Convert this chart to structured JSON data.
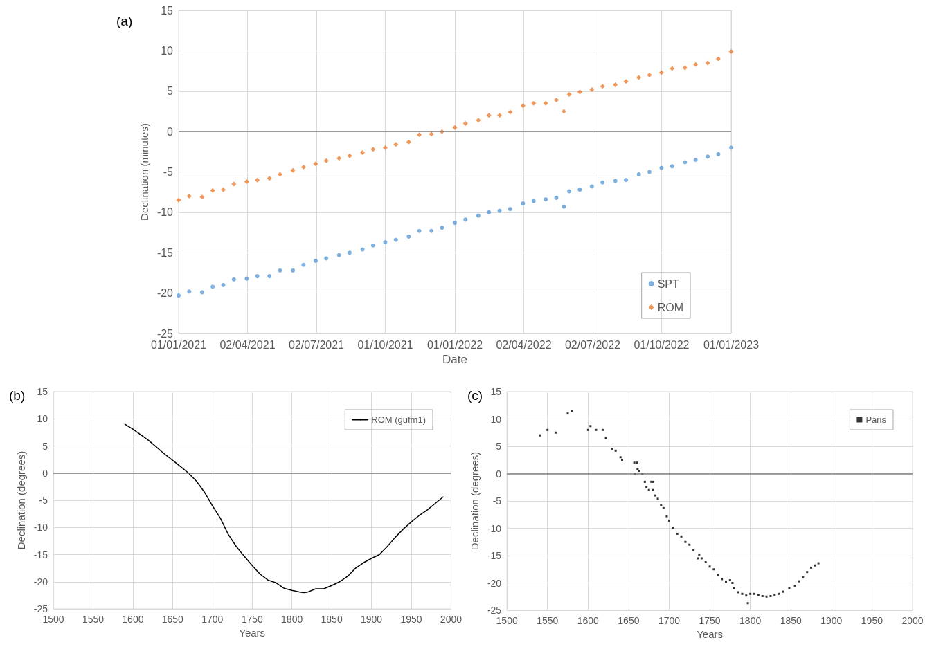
{
  "chart_data": [
    {
      "type": "scatter",
      "title": "(a)",
      "xlabel": "Date",
      "ylabel": "Declination (minutes)",
      "grid": true,
      "legend": "bottom right",
      "xlim": [
        "2021-01-01",
        "2023-01-01"
      ],
      "xticks": [
        {
          "value": "2021-01-01",
          "label": "01/01/2021"
        },
        {
          "value": "2021-04-02",
          "label": "02/04/2021"
        },
        {
          "value": "2021-07-02",
          "label": "02/07/2021"
        },
        {
          "value": "2021-10-01",
          "label": "01/10/2021"
        },
        {
          "value": "2022-01-01",
          "label": "01/01/2022"
        },
        {
          "value": "2022-04-02",
          "label": "02/04/2022"
        },
        {
          "value": "2022-07-02",
          "label": "02/07/2022"
        },
        {
          "value": "2022-10-01",
          "label": "01/10/2022"
        },
        {
          "value": "2023-01-01",
          "label": "01/01/2023"
        }
      ],
      "ylim": [
        -25,
        15
      ],
      "yticks": [
        -25,
        -20,
        -15,
        -10,
        -5,
        0,
        5,
        10,
        15
      ],
      "ref_lines": [
        {
          "axis": "y",
          "value": 0,
          "color": "#808080"
        }
      ],
      "x": [
        "2021-01-01",
        "2021-01-15",
        "2021-02-01",
        "2021-02-15",
        "2021-03-01",
        "2021-03-15",
        "2021-04-01",
        "2021-04-15",
        "2021-05-01",
        "2021-05-15",
        "2021-06-01",
        "2021-06-15",
        "2021-07-01",
        "2021-07-15",
        "2021-08-01",
        "2021-08-15",
        "2021-09-01",
        "2021-09-15",
        "2021-10-01",
        "2021-10-15",
        "2021-11-01",
        "2021-11-15",
        "2021-12-01",
        "2021-12-15",
        "2022-01-01",
        "2022-01-15",
        "2022-02-01",
        "2022-02-15",
        "2022-03-01",
        "2022-03-15",
        "2022-04-01",
        "2022-04-15",
        "2022-05-01",
        "2022-05-15",
        "2022-05-25",
        "2022-06-01",
        "2022-06-15",
        "2022-07-01",
        "2022-07-15",
        "2022-08-01",
        "2022-08-15",
        "2022-09-01",
        "2022-09-15",
        "2022-10-01",
        "2022-10-15",
        "2022-11-01",
        "2022-11-15",
        "2022-12-01",
        "2022-12-15",
        "2023-01-01"
      ],
      "series": [
        {
          "name": "SPT",
          "color": "#5b9bd5",
          "marker": "circle",
          "values": [
            -20.3,
            -19.8,
            -19.9,
            -19.2,
            -19.0,
            -18.3,
            -18.2,
            -17.9,
            -17.9,
            -17.2,
            -17.2,
            -16.5,
            -16.0,
            -15.7,
            -15.3,
            -15.0,
            -14.6,
            -14.1,
            -13.7,
            -13.4,
            -13.0,
            -12.3,
            -12.3,
            -11.9,
            -11.3,
            -10.9,
            -10.4,
            -10.0,
            -9.8,
            -9.6,
            -8.9,
            -8.6,
            -8.4,
            -8.2,
            -9.3,
            -7.4,
            -7.2,
            -6.8,
            -6.3,
            -6.1,
            -6.0,
            -5.3,
            -5.0,
            -4.5,
            -4.3,
            -3.8,
            -3.5,
            -3.1,
            -2.8,
            -2.0
          ]
        },
        {
          "name": "ROM",
          "color": "#ed7d31",
          "marker": "diamond",
          "values": [
            -8.5,
            -8.0,
            -8.1,
            -7.3,
            -7.2,
            -6.5,
            -6.2,
            -6.0,
            -5.8,
            -5.3,
            -4.8,
            -4.4,
            -4.0,
            -3.6,
            -3.3,
            -3.0,
            -2.6,
            -2.2,
            -2.0,
            -1.6,
            -1.3,
            -0.4,
            -0.3,
            0.0,
            0.5,
            1.0,
            1.4,
            2.0,
            2.0,
            2.4,
            3.2,
            3.5,
            3.5,
            3.9,
            2.5,
            4.6,
            4.9,
            5.2,
            5.6,
            5.8,
            6.2,
            6.7,
            7.0,
            7.3,
            7.8,
            7.9,
            8.3,
            8.5,
            9.0,
            9.9
          ]
        }
      ]
    },
    {
      "type": "line",
      "title": "(b)",
      "xlabel": "Years",
      "ylabel": "Declination (degrees)",
      "grid": true,
      "legend": "top right",
      "marker": "none",
      "line_style": "solid",
      "xlim": [
        1500,
        2000
      ],
      "xticks": [
        1500,
        1550,
        1600,
        1650,
        1700,
        1750,
        1800,
        1850,
        1900,
        1950,
        2000
      ],
      "ylim": [
        -25,
        15
      ],
      "yticks": [
        -25,
        -20,
        -15,
        -10,
        -5,
        0,
        5,
        10,
        15
      ],
      "ref_lines": [
        {
          "axis": "y",
          "value": 0,
          "color": "#808080"
        }
      ],
      "x": [
        1590,
        1600,
        1620,
        1640,
        1660,
        1670,
        1680,
        1690,
        1700,
        1710,
        1720,
        1730,
        1740,
        1750,
        1760,
        1770,
        1780,
        1790,
        1800,
        1810,
        1815,
        1820,
        1830,
        1840,
        1850,
        1860,
        1870,
        1880,
        1890,
        1900,
        1910,
        1920,
        1930,
        1940,
        1950,
        1960,
        1970,
        1980,
        1990
      ],
      "series": [
        {
          "name": "ROM (gufm1)",
          "color": "#000000",
          "values": [
            9,
            8.1,
            6,
            3.5,
            1.2,
            0,
            -1.5,
            -3.5,
            -6,
            -8.3,
            -11.3,
            -13.5,
            -15.3,
            -17,
            -18.6,
            -19.7,
            -20.2,
            -21.2,
            -21.6,
            -21.9,
            -22,
            -21.9,
            -21.3,
            -21.3,
            -20.7,
            -20.0,
            -19.0,
            -17.5,
            -16.5,
            -15.7,
            -15.0,
            -13.5,
            -11.8,
            -10.3,
            -9.0,
            -7.8,
            -6.8,
            -5.6,
            -4.4
          ]
        }
      ]
    },
    {
      "type": "scatter",
      "title": "(c)",
      "xlabel": "Years",
      "ylabel": "Declination (degrees)",
      "grid": true,
      "legend": "top right",
      "marker": "square",
      "xlim": [
        1500,
        2000
      ],
      "xticks": [
        1500,
        1550,
        1600,
        1650,
        1700,
        1750,
        1800,
        1850,
        1900,
        1950,
        2000
      ],
      "ylim": [
        -25,
        15
      ],
      "yticks": [
        -25,
        -20,
        -15,
        -10,
        -5,
        0,
        5,
        10,
        15
      ],
      "ref_lines": [
        {
          "axis": "y",
          "value": 0,
          "color": "#808080"
        }
      ],
      "x": [
        1541,
        1550,
        1560,
        1575,
        1580,
        1600,
        1603,
        1610,
        1618,
        1622,
        1630,
        1634,
        1640,
        1642,
        1657,
        1660,
        1658,
        1661,
        1663,
        1667,
        1670,
        1672,
        1675,
        1678,
        1680,
        1680,
        1683,
        1686,
        1690,
        1693,
        1697,
        1700,
        1705,
        1710,
        1715,
        1720,
        1725,
        1730,
        1735,
        1737,
        1740,
        1745,
        1750,
        1755,
        1760,
        1765,
        1770,
        1775,
        1778,
        1780,
        1785,
        1790,
        1795,
        1797,
        1800,
        1805,
        1810,
        1815,
        1820,
        1825,
        1830,
        1835,
        1840,
        1848,
        1855,
        1860,
        1865,
        1870,
        1875,
        1880,
        1884
      ],
      "series": [
        {
          "name": "Paris",
          "color": "#000000",
          "values": [
            7,
            8,
            7.5,
            11,
            11.5,
            8,
            8.7,
            8,
            8,
            6.5,
            4.5,
            4.2,
            3,
            2.5,
            2,
            2,
            0,
            0.8,
            0.5,
            0,
            -1.5,
            -2.5,
            -3,
            -1.5,
            -1.5,
            -3,
            -4,
            -4.6,
            -5.8,
            -6.3,
            -7.8,
            -8.6,
            -10,
            -11,
            -11.5,
            -12.5,
            -13,
            -14,
            -15.5,
            -14.8,
            -15.5,
            -16.2,
            -17,
            -17.5,
            -18.5,
            -19.3,
            -19.8,
            -19.5,
            -20,
            -21,
            -21.7,
            -22,
            -22.3,
            -23.7,
            -22,
            -22,
            -22.2,
            -22.4,
            -22.5,
            -22.4,
            -22.2,
            -22,
            -21.6,
            -21,
            -20.5,
            -19.7,
            -19,
            -18,
            -17.2,
            -16.8,
            -16.4
          ]
        }
      ]
    }
  ]
}
